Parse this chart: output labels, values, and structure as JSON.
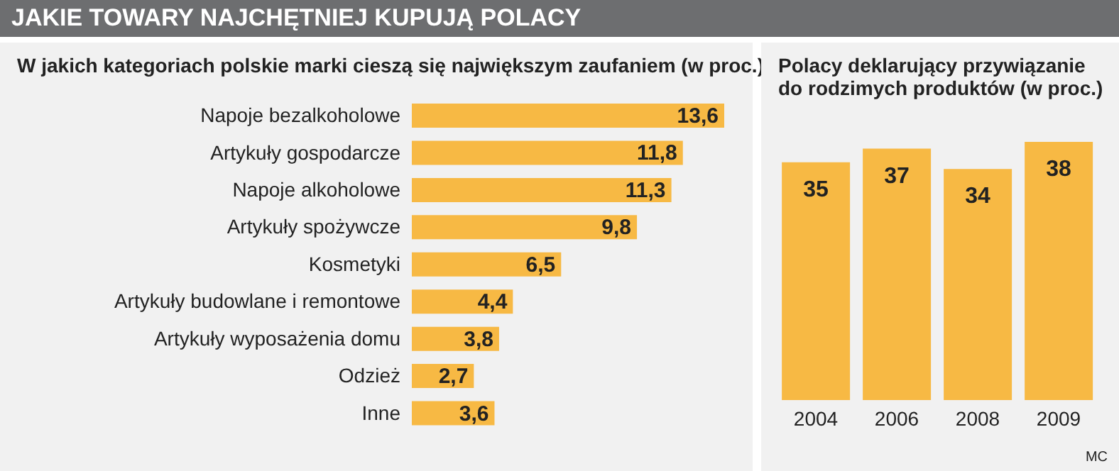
{
  "chart_data": [
    {
      "type": "bar",
      "orientation": "horizontal",
      "title": "JAKIE TOWARY NAJCHĘTNIEJ KUPUJĄ POLACY",
      "subtitle": "W jakich kategoriach polskie marki cieszą się największym zaufaniem (w proc.)",
      "categories": [
        "Napoje bezalkoholowe",
        "Artykuły gospodarcze",
        "Napoje alkoholowe",
        "Artykuły spożywcze",
        "Kosmetyki",
        "Artykuły budowlane i remontowe",
        "Artykuły wyposażenia domu",
        "Odzież",
        "Inne"
      ],
      "values": [
        13.6,
        11.8,
        11.3,
        9.8,
        6.5,
        4.4,
        3.8,
        2.7,
        3.6
      ],
      "value_labels": [
        "13,6",
        "11,8",
        "11,3",
        "9,8",
        "6,5",
        "4,4",
        "3,8",
        "2,7",
        "3,6"
      ],
      "color": "#f7b944",
      "tick_labels": "y"
    },
    {
      "type": "bar",
      "title": "Polacy deklarujący przywiązanie do rodzimych produktów (w proc.)",
      "categories": [
        "2004",
        "2006",
        "2008",
        "2009"
      ],
      "values": [
        35,
        37,
        34,
        38
      ],
      "data_labels": true,
      "color": "#f7b944",
      "tick_labels": "x",
      "annotations": [
        "MC"
      ]
    }
  ]
}
